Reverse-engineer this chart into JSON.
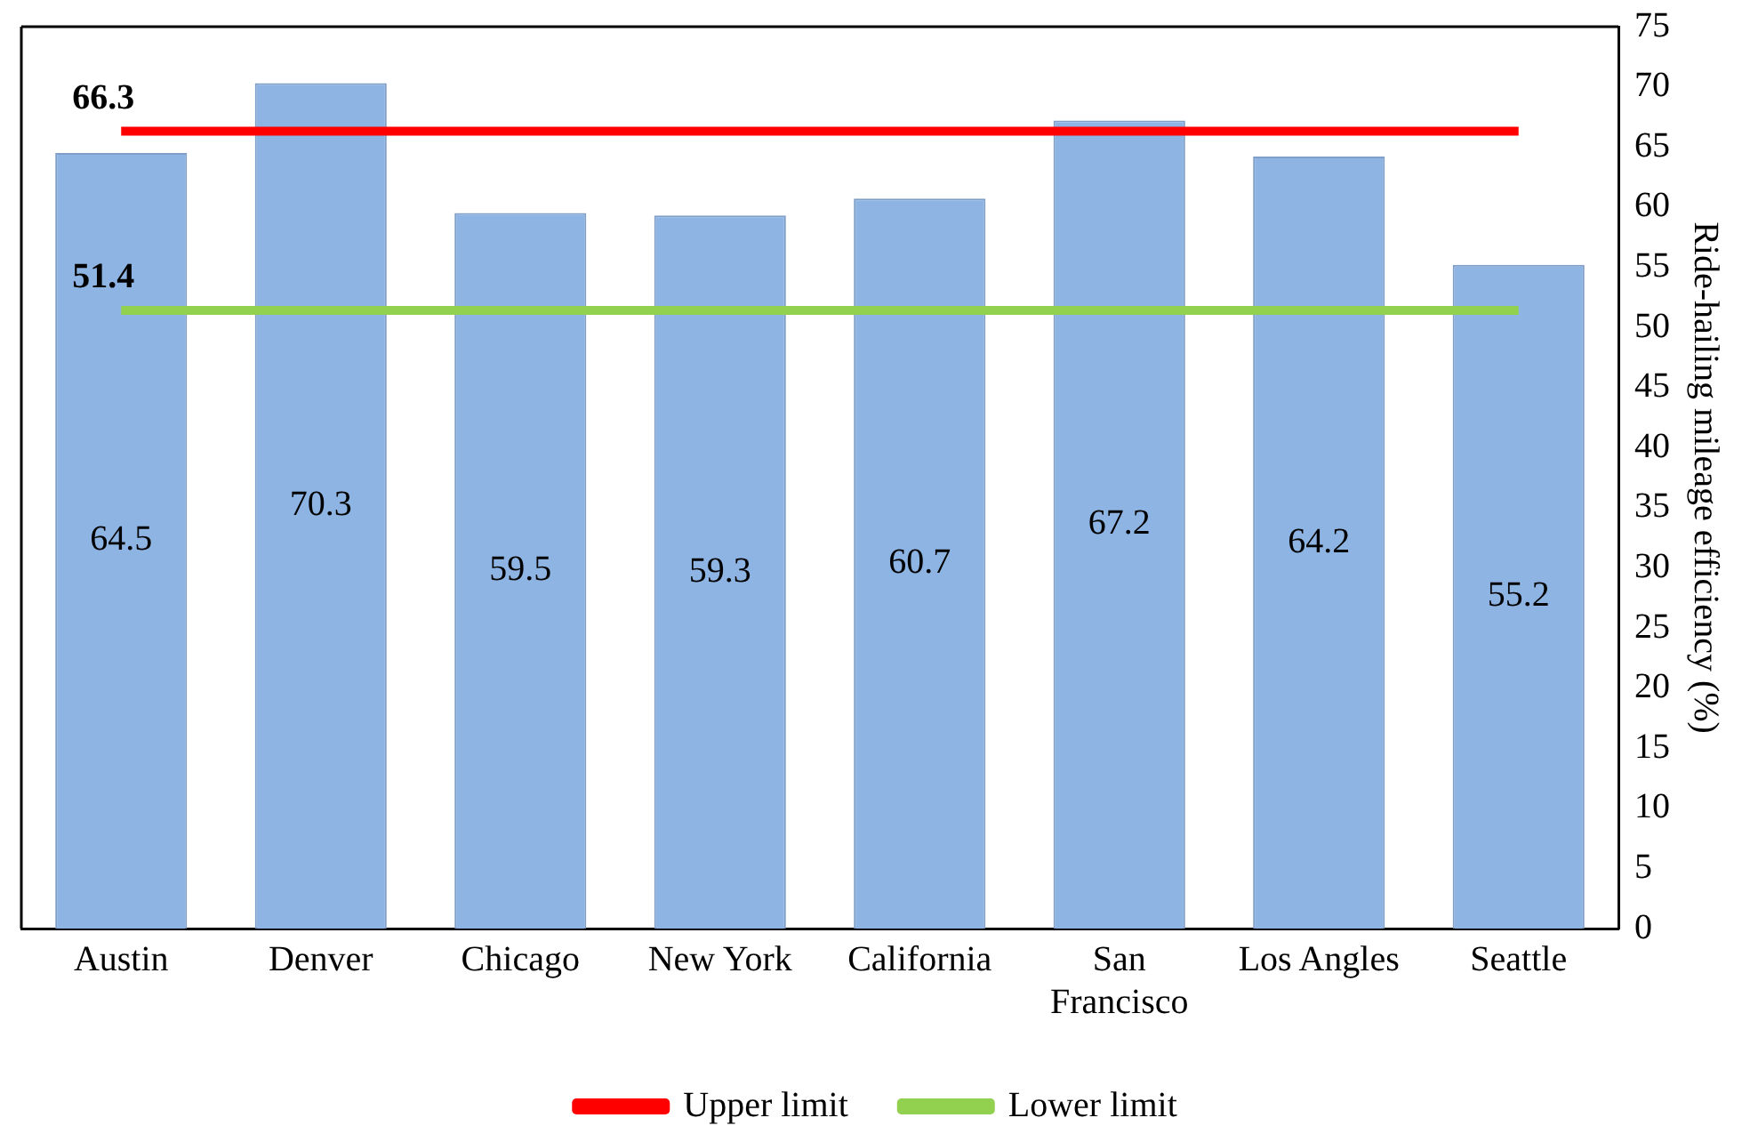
{
  "chart_data": {
    "type": "bar",
    "ylabel": "Ride-hailing mileage efficiency (%)",
    "categories": [
      "Austin",
      "Denver",
      "Chicago",
      "New York",
      "California",
      "San Francisco",
      "Los Angles",
      "Seattle"
    ],
    "series": [
      {
        "color": "#8eb4e3",
        "values": [
          64.5,
          70.3,
          59.5,
          59.3,
          60.7,
          67.2,
          64.2,
          55.2
        ],
        "data_labels": true
      },
      {
        "type": "line",
        "name": "Upper limit",
        "color": "#ff0000",
        "values": [
          66.3,
          66.3,
          66.3,
          66.3,
          66.3,
          66.3,
          66.3,
          66.3
        ],
        "value_labels": [
          "66.3",
          null,
          null,
          null,
          null,
          null,
          null,
          null
        ]
      },
      {
        "type": "line",
        "name": "Lower limit",
        "color": "#92d050",
        "values": [
          51.4,
          51.4,
          51.4,
          51.4,
          51.4,
          51.4,
          51.4,
          51.4
        ],
        "value_labels": [
          "51.4",
          null,
          null,
          null,
          null,
          null,
          null,
          null
        ]
      }
    ],
    "ylim": [
      0,
      75
    ],
    "yticks": [
      0,
      5,
      10,
      15,
      20,
      25,
      30,
      35,
      40,
      45,
      50,
      55,
      60,
      65,
      70,
      75
    ],
    "grid": false,
    "legend": "bottom",
    "marker": "none"
  }
}
